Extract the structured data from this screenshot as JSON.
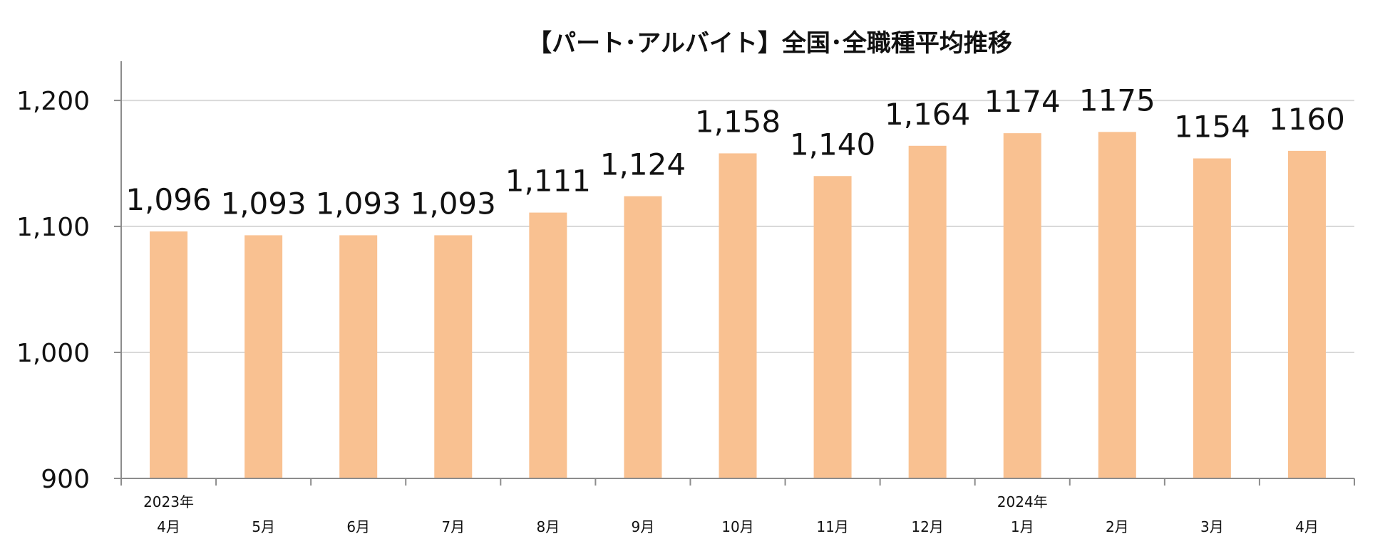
{
  "chart_data": {
    "type": "bar",
    "title": "【パート･アルバイト】全国･全職種平均推移",
    "xlabel": "",
    "ylabel": "",
    "ylim": [
      900,
      1230
    ],
    "yticks": [
      900,
      1000,
      1100,
      1200
    ],
    "ytick_labels": [
      "900",
      "1,000",
      "1,100",
      "1,200"
    ],
    "gridlines": true,
    "bar_color": "#F9C191",
    "categories": [
      "4月",
      "5月",
      "6月",
      "7月",
      "8月",
      "9月",
      "10月",
      "11月",
      "12月",
      "1月",
      "2月",
      "3月",
      "4月"
    ],
    "year_labels": [
      "2023年",
      "",
      "",
      "",
      "",
      "",
      "",
      "",
      "",
      "2024年",
      "",
      "",
      ""
    ],
    "values": [
      1096,
      1093,
      1093,
      1093,
      1111,
      1124,
      1158,
      1140,
      1164,
      1174,
      1175,
      1154,
      1160
    ],
    "value_labels": [
      "1,096",
      "1,093",
      "1,093",
      "1,093",
      "1,111",
      "1,124",
      "1,158",
      "1,140",
      "1,164",
      "1174",
      "1175",
      "1154",
      "1160"
    ]
  }
}
